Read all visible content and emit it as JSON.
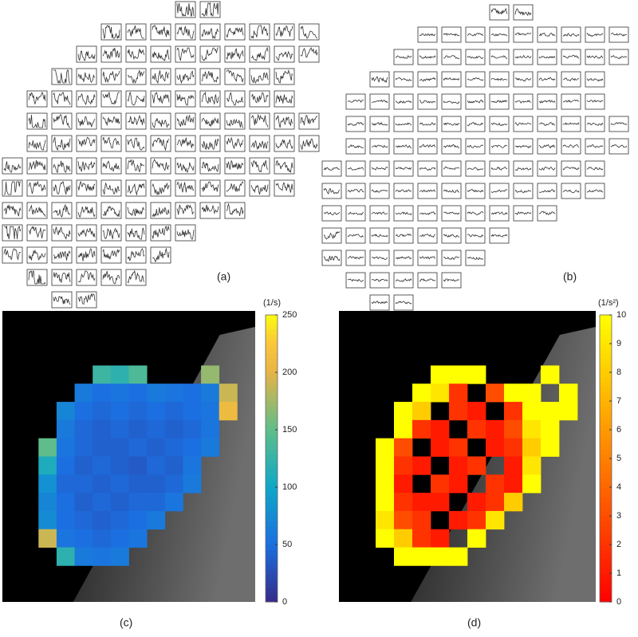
{
  "panels": [
    {
      "label": "(a)"
    },
    {
      "label": "(b)"
    },
    {
      "label": "(c)",
      "unit": "(1/s)",
      "colormap": "parula",
      "clim": [
        0,
        250
      ],
      "ticks": [
        0,
        50,
        100,
        150,
        200,
        250
      ],
      "cells": [
        [
          null,
          null,
          null,
          null,
          null,
          null,
          null,
          null,
          null,
          null,
          null,
          null,
          null,
          null
        ],
        [
          null,
          null,
          null,
          null,
          null,
          null,
          null,
          null,
          null,
          null,
          null,
          null,
          null,
          null
        ],
        [
          null,
          null,
          null,
          null,
          null,
          null,
          null,
          null,
          null,
          null,
          null,
          null,
          null,
          null
        ],
        [
          null,
          null,
          null,
          null,
          null,
          130,
          120,
          140,
          null,
          null,
          null,
          170,
          null,
          null
        ],
        [
          null,
          null,
          null,
          null,
          60,
          50,
          55,
          50,
          60,
          55,
          50,
          60,
          190,
          null
        ],
        [
          null,
          null,
          null,
          70,
          50,
          45,
          50,
          45,
          50,
          45,
          50,
          55,
          210,
          null
        ],
        [
          null,
          null,
          null,
          60,
          45,
          40,
          45,
          40,
          45,
          40,
          45,
          55,
          null,
          null
        ],
        [
          null,
          null,
          150,
          55,
          45,
          40,
          40,
          45,
          40,
          45,
          50,
          60,
          null,
          null
        ],
        [
          null,
          null,
          110,
          50,
          40,
          45,
          40,
          35,
          45,
          40,
          55,
          null,
          null,
          null
        ],
        [
          null,
          null,
          80,
          45,
          45,
          40,
          45,
          40,
          40,
          45,
          60,
          null,
          null,
          null
        ],
        [
          null,
          null,
          70,
          50,
          40,
          45,
          40,
          45,
          45,
          55,
          null,
          null,
          null,
          null
        ],
        [
          null,
          null,
          75,
          50,
          45,
          40,
          45,
          50,
          60,
          null,
          null,
          null,
          null,
          null
        ],
        [
          null,
          null,
          190,
          55,
          50,
          45,
          50,
          55,
          null,
          null,
          null,
          null,
          null,
          null
        ],
        [
          null,
          null,
          null,
          120,
          60,
          55,
          60,
          null,
          null,
          null,
          null,
          null,
          null,
          null
        ],
        [
          null,
          null,
          null,
          null,
          null,
          null,
          null,
          null,
          null,
          null,
          null,
          null,
          null,
          null
        ],
        [
          null,
          null,
          null,
          null,
          null,
          null,
          null,
          null,
          null,
          null,
          null,
          null,
          null,
          null
        ]
      ]
    },
    {
      "label": "(d)",
      "unit": "(1/s²)",
      "colormap": "autumn",
      "clim": [
        0,
        10
      ],
      "ticks": [
        0,
        1,
        2,
        3,
        4,
        5,
        6,
        7,
        8,
        9,
        10
      ],
      "cells": [
        [
          null,
          null,
          null,
          null,
          null,
          null,
          null,
          null,
          null,
          null,
          null,
          null,
          null,
          null
        ],
        [
          null,
          null,
          null,
          null,
          null,
          null,
          null,
          null,
          null,
          null,
          null,
          null,
          null,
          null
        ],
        [
          null,
          null,
          null,
          null,
          null,
          null,
          null,
          null,
          null,
          null,
          null,
          null,
          null,
          null
        ],
        [
          null,
          null,
          null,
          null,
          null,
          10,
          10,
          10,
          null,
          null,
          null,
          10,
          null,
          null
        ],
        [
          null,
          null,
          null,
          null,
          10,
          9,
          2,
          null,
          3,
          10,
          10,
          null,
          10,
          null
        ],
        [
          null,
          null,
          null,
          10,
          8,
          null,
          2,
          1,
          null,
          2,
          10,
          10,
          10,
          null
        ],
        [
          null,
          null,
          null,
          10,
          2,
          1,
          null,
          2,
          1,
          3,
          9,
          10,
          null,
          null
        ],
        [
          null,
          null,
          10,
          3,
          null,
          1,
          2,
          null,
          1,
          2,
          8,
          10,
          null,
          null
        ],
        [
          null,
          null,
          10,
          2,
          1,
          null,
          1,
          2,
          null,
          1,
          9,
          null,
          null,
          null
        ],
        [
          null,
          null,
          10,
          1,
          null,
          2,
          1,
          null,
          2,
          1,
          10,
          null,
          null,
          null
        ],
        [
          null,
          null,
          10,
          2,
          1,
          1,
          null,
          1,
          2,
          8,
          null,
          null,
          null,
          null
        ],
        [
          null,
          null,
          9,
          3,
          2,
          null,
          1,
          2,
          9,
          null,
          null,
          null,
          null,
          null
        ],
        [
          null,
          null,
          10,
          8,
          2,
          1,
          null,
          10,
          null,
          null,
          null,
          null,
          null,
          null
        ],
        [
          null,
          null,
          null,
          10,
          10,
          10,
          10,
          null,
          null,
          null,
          null,
          null,
          null,
          null
        ],
        [
          null,
          null,
          null,
          null,
          null,
          null,
          null,
          null,
          null,
          null,
          null,
          null,
          null,
          null
        ],
        [
          null,
          null,
          null,
          null,
          null,
          null,
          null,
          null,
          null,
          null,
          null,
          null,
          null,
          null
        ]
      ]
    }
  ]
}
